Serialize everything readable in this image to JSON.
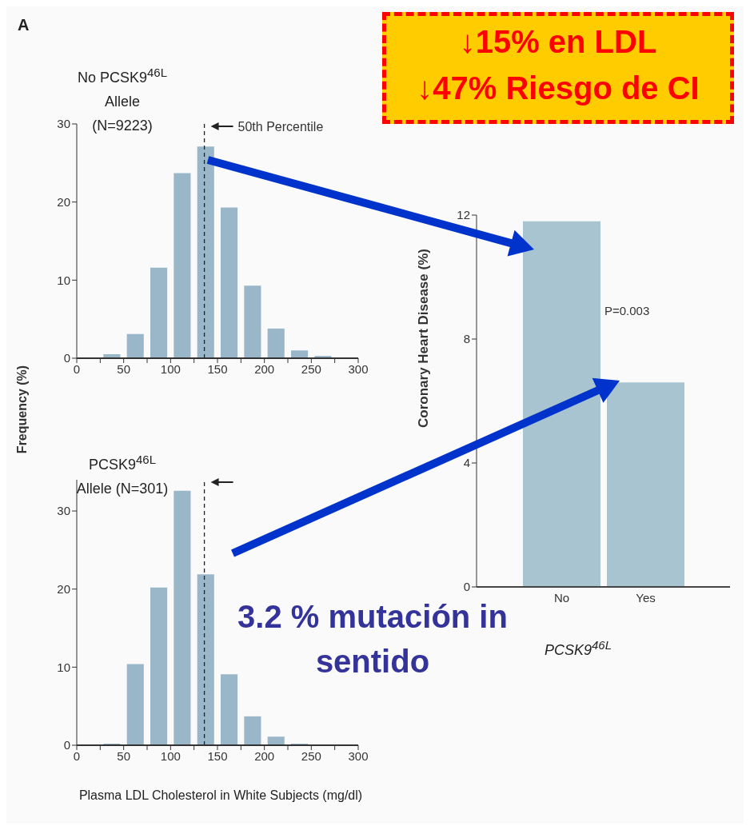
{
  "chart_data": [
    {
      "type": "histogram",
      "title": "No PCSK9$^{46L}$ Allele (N=9223)",
      "ylabel": "Frequency (%)",
      "annotations": [
        "A"
      ],
      "bins": [
        25,
        50,
        75,
        100,
        125,
        150,
        175,
        200,
        225,
        250,
        275
      ],
      "values": [
        0.5,
        3.1,
        11.6,
        23.7,
        27.1,
        19.3,
        9.3,
        3.8,
        1.0,
        0.3
      ],
      "color": "#9ab7ca",
      "xlim": [
        0,
        300
      ],
      "xticks": [
        0,
        {
          "value": 25,
          "label": null
        },
        50,
        {
          "value": 75,
          "label": null
        },
        100,
        {
          "value": 125,
          "label": null
        },
        150,
        {
          "value": 175,
          "label": null
        },
        200,
        {
          "value": 225,
          "label": null
        },
        250,
        {
          "value": 275,
          "label": null
        },
        300
      ],
      "ylim": [
        0,
        30
      ],
      "yticks": [
        0,
        10,
        20,
        30
      ],
      "ref_lines": [
        {
          "axis": "x",
          "value": 136,
          "label": "50th Percentile",
          "color": "#222222",
          "line_style": "dashed"
        }
      ],
      "grid": false,
      "legend": false
    },
    {
      "type": "histogram",
      "title": "PCSK9$^{46L}$ Allele (N=301)",
      "xlabel": "Plasma LDL Cholesterol in White Subjects (mg/dl)",
      "annotations": [
        "3.2 % mutación in sentido"
      ],
      "bins": [
        25,
        50,
        75,
        100,
        125,
        150,
        175,
        200,
        225,
        250
      ],
      "values": [
        0.2,
        10.4,
        20.2,
        32.6,
        21.9,
        9.1,
        3.7,
        1.1,
        0.2
      ],
      "color": "#9ab7ca",
      "xlim": [
        0,
        300
      ],
      "xticks": [
        0,
        {
          "value": 25,
          "label": null
        },
        50,
        {
          "value": 75,
          "label": null
        },
        100,
        {
          "value": 125,
          "label": null
        },
        150,
        {
          "value": 175,
          "label": null
        },
        200,
        {
          "value": 225,
          "label": null
        },
        250,
        {
          "value": 275,
          "label": null
        },
        300
      ],
      "ylim": [
        0,
        34
      ],
      "yticks": [
        0,
        10,
        20,
        30
      ],
      "ref_lines": [
        {
          "axis": "x",
          "value": 136,
          "color": "#222222",
          "line_style": "dashed"
        }
      ],
      "grid": false,
      "legend": false
    },
    {
      "type": "bar",
      "xlabel": "PCSK9$^{46L}$",
      "ylabel": "Coronary Heart Disease (%)",
      "annotations": [
        "↓15% en LDL",
        "↓47% Riesgo de CI",
        "P=0.003"
      ],
      "categories": [
        "No",
        "Yes"
      ],
      "values": [
        11.8,
        6.6
      ],
      "color": "#a9c4d1",
      "ylim": [
        0,
        12
      ],
      "yticks": [
        0,
        4,
        8,
        12
      ],
      "grid": false,
      "legend": false
    }
  ]
}
